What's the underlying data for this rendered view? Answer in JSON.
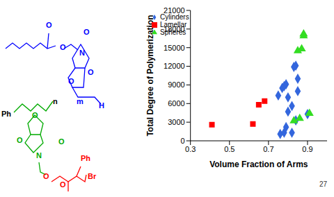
{
  "chart_data": {
    "type": "scatter",
    "x_label": "Volume Fraction of Arms",
    "y_label": "Total Degree of Polymerization",
    "xlim": [
      0.3,
      1.0
    ],
    "xticks": [
      0.3,
      0.5,
      0.7,
      0.9
    ],
    "ylim": [
      0,
      21000
    ],
    "yticks": [
      0,
      3000,
      6000,
      9000,
      12000,
      15000,
      18000,
      21000
    ],
    "grid": false,
    "legend": "upper left",
    "series": [
      {
        "name": "Lamellar",
        "color": "#ff0000",
        "marker": "square",
        "x": [
          0.41,
          0.62,
          0.65,
          0.68
        ],
        "values": [
          2600,
          2700,
          5800,
          6400
        ]
      },
      {
        "name": "Cylinders",
        "color": "#3366dd",
        "marker": "diamond",
        "x": [
          0.75,
          0.77,
          0.78,
          0.79,
          0.76,
          0.78,
          0.79,
          0.8,
          0.8,
          0.82,
          0.82,
          0.83,
          0.84,
          0.85,
          0.84,
          0.85,
          0.9
        ],
        "values": [
          7300,
          8500,
          8800,
          9100,
          1100,
          1300,
          2200,
          4700,
          7000,
          5600,
          1300,
          11900,
          12100,
          10000,
          3300,
          8000,
          4300
        ]
      },
      {
        "name": "Spheres",
        "color": "#33dd22",
        "marker": "triangle",
        "x": [
          0.85,
          0.87,
          0.88,
          0.88,
          0.83,
          0.86,
          0.91
        ],
        "values": [
          14500,
          14800,
          17200,
          16900,
          3200,
          3600,
          4400
        ]
      }
    ]
  },
  "structure": {
    "labels": [
      {
        "text": "O",
        "color": "#0000ff"
      },
      {
        "text": "O",
        "color": "#0000ff"
      },
      {
        "text": "O",
        "color": "#0000ff"
      },
      {
        "text": "N",
        "color": "#0000ff"
      },
      {
        "text": "O",
        "color": "#0000ff"
      },
      {
        "text": "O",
        "color": "#0000ff"
      },
      {
        "text": "m",
        "color": "#0000ff"
      },
      {
        "text": "H",
        "color": "#0000ff"
      },
      {
        "text": "Ph",
        "color": "#000000"
      },
      {
        "text": "n",
        "color": "#000000"
      },
      {
        "text": "O",
        "color": "#00aa00"
      },
      {
        "text": "O",
        "color": "#00aa00"
      },
      {
        "text": "N",
        "color": "#00aa00"
      },
      {
        "text": "O",
        "color": "#00aa00"
      },
      {
        "text": "O",
        "color": "#ff0000"
      },
      {
        "text": "O",
        "color": "#ff0000"
      },
      {
        "text": "Ph",
        "color": "#ff0000"
      },
      {
        "text": "Br",
        "color": "#ff0000"
      }
    ]
  },
  "page_number": "27"
}
